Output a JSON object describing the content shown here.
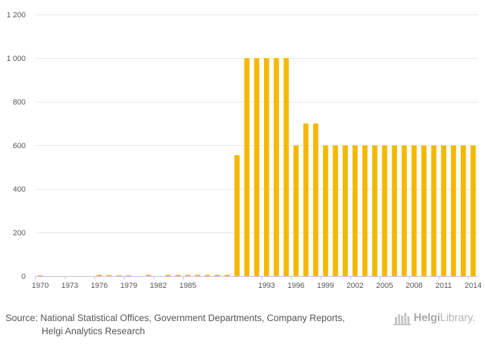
{
  "chart_data": {
    "type": "bar",
    "title": "",
    "xlabel": "",
    "ylabel": "",
    "ylim": [
      0,
      1200
    ],
    "yticks": [
      0,
      200,
      400,
      600,
      800,
      1000,
      1200
    ],
    "ytick_labels": [
      "0",
      "200",
      "400",
      "600",
      "800",
      "1 000",
      "1 200"
    ],
    "xtick_labels": [
      "1970",
      "1973",
      "1976",
      "1979",
      "1982",
      "1985",
      "1993",
      "1996",
      "1999",
      "2002",
      "2005",
      "2008",
      "2011",
      "2014"
    ],
    "categories": [
      "1970",
      "1971",
      "1972",
      "1973",
      "1974",
      "1975",
      "1976",
      "1977",
      "1978",
      "1979",
      "1980",
      "1981",
      "1982",
      "1983",
      "1984",
      "1985",
      "1986",
      "1987",
      "1988",
      "1989",
      "1990",
      "1991",
      "1992",
      "1993",
      "1994",
      "1995",
      "1996",
      "1997",
      "1998",
      "1999",
      "2000",
      "2001",
      "2002",
      "2003",
      "2004",
      "2005",
      "2006",
      "2007",
      "2008",
      "2009",
      "2010",
      "2011",
      "2012",
      "2013",
      "2014"
    ],
    "series": [
      {
        "name": "",
        "values": [
          4,
          null,
          null,
          null,
          null,
          null,
          6,
          5,
          4,
          4,
          null,
          6,
          null,
          6,
          6,
          6,
          6,
          6,
          6,
          6,
          555,
          1000,
          1000,
          1000,
          1000,
          1000,
          600,
          700,
          700,
          600,
          600,
          600,
          600,
          600,
          600,
          600,
          600,
          600,
          600,
          600,
          600,
          600,
          600,
          600,
          600
        ]
      }
    ],
    "bar_color": "#f5b800",
    "grid": true
  },
  "footer": {
    "source_line1": "Source: National Statistical Offices, Government Departments, Company Reports,",
    "source_line2": "Helgi Analytics Research",
    "logo_name": "Helgi",
    "logo_suffix": "Library."
  }
}
